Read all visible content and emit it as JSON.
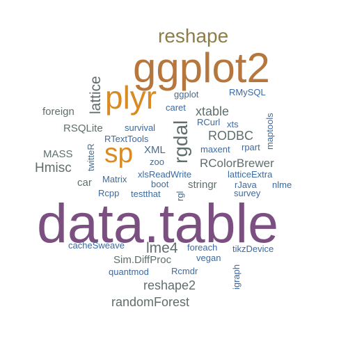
{
  "colors": {
    "purple": "#7b4f7f",
    "brown": "#b5773d",
    "orange": "#d98a22",
    "olive": "#8f7d47",
    "gray": "#5f6e6d",
    "slate": "#4a6a8b",
    "blue": "#3b6aa3"
  },
  "words": {
    "data_table": "data.table",
    "ggplot2": "ggplot2",
    "plyr": "plyr",
    "sp": "sp",
    "reshape": "reshape",
    "rgdal": "rgdal",
    "lattice": "lattice",
    "Hmisc": "Hmisc",
    "xtable": "xtable",
    "RODBC": "RODBC",
    "RColorBrewer": "RColorBrewer",
    "lme4": "lme4",
    "reshape2": "reshape2",
    "randomForest": "randomForest",
    "foreign": "foreign",
    "RSQLite": "RSQLite",
    "MASS": "MASS",
    "car": "car",
    "stringr": "stringr",
    "XML": "XML",
    "Sim_DiffProc": "Sim.DiffProc",
    "quantmod": "quantmod",
    "Rcmdr": "Rcmdr",
    "ggplot": "ggplot",
    "RMySQL": "RMySQL",
    "caret": "caret",
    "RCurl": "RCurl",
    "xts": "xts",
    "survival": "survival",
    "RTextTools": "RTextTools",
    "maxent": "maxent",
    "rpart": "rpart",
    "zoo": "zoo",
    "Matrix": "Matrix",
    "xlsReadWrite": "xlsReadWrite",
    "boot": "boot",
    "latticeExtra": "latticeExtra",
    "Rcpp": "Rcpp",
    "testthat": "testthat",
    "rJava": "rJava",
    "nlme": "nlme",
    "survey": "survey",
    "cacheSweave": "cacheSweave",
    "foreach": "foreach",
    "tikzDevice": "tikzDevice",
    "vegan": "vegan",
    "twitteR": "twitteR",
    "maptools": "maptools",
    "rgl": "rgl",
    "igraph": "igraph"
  }
}
